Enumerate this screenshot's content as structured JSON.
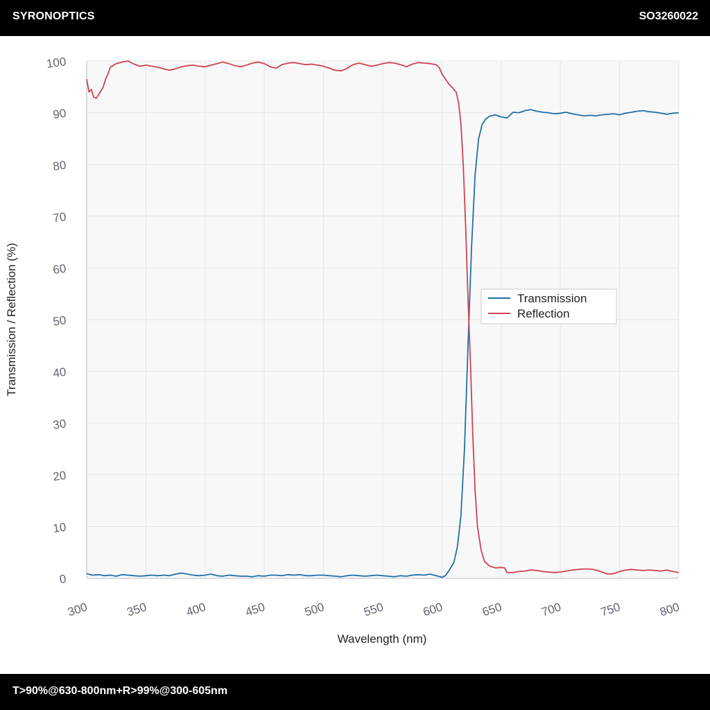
{
  "header": {
    "brand": "SYRONOPTICS",
    "part_number": "SO3260022"
  },
  "footer": {
    "spec": "T>90%@630-800nm+R>99%@300-605nm"
  },
  "colors": {
    "transmission": "#1f6fa8",
    "reflection": "#d0414f",
    "plot_background": "#f8f8f9",
    "grid": "#e4e5e8"
  },
  "chart_data": {
    "type": "line",
    "xlabel": "Wavelength (nm)",
    "ylabel": "Transmission / Reflection (%)",
    "xlim": [
      300,
      800
    ],
    "ylim": [
      0,
      100
    ],
    "xticks": [
      300,
      350,
      400,
      450,
      500,
      550,
      600,
      650,
      700,
      750,
      800
    ],
    "yticks": [
      0,
      10,
      20,
      30,
      40,
      50,
      60,
      70,
      80,
      90,
      100
    ],
    "grid": true,
    "legend_position": "right-center",
    "series": [
      {
        "name": "Transmission",
        "color": "#1f6fa8",
        "points": [
          [
            300,
            0.9
          ],
          [
            305,
            0.6
          ],
          [
            310,
            0.7
          ],
          [
            315,
            0.5
          ],
          [
            320,
            0.6
          ],
          [
            325,
            0.4
          ],
          [
            330,
            0.7
          ],
          [
            335,
            0.6
          ],
          [
            340,
            0.5
          ],
          [
            345,
            0.4
          ],
          [
            350,
            0.5
          ],
          [
            355,
            0.6
          ],
          [
            360,
            0.5
          ],
          [
            365,
            0.6
          ],
          [
            370,
            0.5
          ],
          [
            375,
            0.8
          ],
          [
            380,
            1.0
          ],
          [
            385,
            0.8
          ],
          [
            390,
            0.6
          ],
          [
            395,
            0.5
          ],
          [
            400,
            0.6
          ],
          [
            405,
            0.8
          ],
          [
            410,
            0.5
          ],
          [
            415,
            0.4
          ],
          [
            420,
            0.6
          ],
          [
            425,
            0.5
          ],
          [
            430,
            0.4
          ],
          [
            435,
            0.4
          ],
          [
            440,
            0.3
          ],
          [
            445,
            0.5
          ],
          [
            450,
            0.4
          ],
          [
            455,
            0.6
          ],
          [
            460,
            0.6
          ],
          [
            465,
            0.5
          ],
          [
            470,
            0.7
          ],
          [
            475,
            0.6
          ],
          [
            480,
            0.7
          ],
          [
            485,
            0.5
          ],
          [
            490,
            0.5
          ],
          [
            495,
            0.6
          ],
          [
            500,
            0.6
          ],
          [
            505,
            0.5
          ],
          [
            510,
            0.4
          ],
          [
            515,
            0.3
          ],
          [
            520,
            0.5
          ],
          [
            525,
            0.6
          ],
          [
            530,
            0.5
          ],
          [
            535,
            0.4
          ],
          [
            540,
            0.5
          ],
          [
            545,
            0.6
          ],
          [
            550,
            0.5
          ],
          [
            555,
            0.4
          ],
          [
            560,
            0.3
          ],
          [
            565,
            0.5
          ],
          [
            570,
            0.4
          ],
          [
            575,
            0.6
          ],
          [
            580,
            0.7
          ],
          [
            585,
            0.6
          ],
          [
            590,
            0.8
          ],
          [
            595,
            0.5
          ],
          [
            600,
            0.2
          ],
          [
            603,
            0.5
          ],
          [
            606,
            1.5
          ],
          [
            610,
            3.0
          ],
          [
            613,
            6.0
          ],
          [
            616,
            12.0
          ],
          [
            619,
            25.0
          ],
          [
            622,
            45.0
          ],
          [
            625,
            64.0
          ],
          [
            628,
            78.0
          ],
          [
            631,
            85.0
          ],
          [
            634,
            87.8
          ],
          [
            637,
            88.8
          ],
          [
            640,
            89.3
          ],
          [
            645,
            89.6
          ],
          [
            650,
            89.2
          ],
          [
            655,
            89.0
          ],
          [
            660,
            90.1
          ],
          [
            665,
            90.0
          ],
          [
            670,
            90.4
          ],
          [
            675,
            90.6
          ],
          [
            680,
            90.3
          ],
          [
            685,
            90.1
          ],
          [
            690,
            90.0
          ],
          [
            695,
            89.8
          ],
          [
            700,
            89.9
          ],
          [
            705,
            90.1
          ],
          [
            710,
            89.8
          ],
          [
            715,
            89.6
          ],
          [
            720,
            89.4
          ],
          [
            725,
            89.5
          ],
          [
            730,
            89.4
          ],
          [
            735,
            89.6
          ],
          [
            740,
            89.7
          ],
          [
            745,
            89.8
          ],
          [
            750,
            89.6
          ],
          [
            755,
            89.9
          ],
          [
            760,
            90.1
          ],
          [
            765,
            90.3
          ],
          [
            770,
            90.4
          ],
          [
            775,
            90.2
          ],
          [
            780,
            90.1
          ],
          [
            785,
            89.9
          ],
          [
            790,
            89.7
          ],
          [
            795,
            89.9
          ],
          [
            800,
            90.0
          ]
        ]
      },
      {
        "name": "Reflection",
        "color": "#d0414f",
        "points": [
          [
            300,
            96.5
          ],
          [
            302,
            94.0
          ],
          [
            304,
            94.5
          ],
          [
            306,
            93.0
          ],
          [
            308,
            92.8
          ],
          [
            310,
            93.5
          ],
          [
            312,
            94.2
          ],
          [
            314,
            95.0
          ],
          [
            316,
            96.5
          ],
          [
            318,
            97.5
          ],
          [
            320,
            98.8
          ],
          [
            325,
            99.5
          ],
          [
            330,
            99.8
          ],
          [
            335,
            100.0
          ],
          [
            340,
            99.4
          ],
          [
            345,
            99.0
          ],
          [
            350,
            99.2
          ],
          [
            355,
            99.0
          ],
          [
            360,
            98.8
          ],
          [
            365,
            98.5
          ],
          [
            370,
            98.2
          ],
          [
            375,
            98.5
          ],
          [
            380,
            98.9
          ],
          [
            385,
            99.1
          ],
          [
            390,
            99.2
          ],
          [
            395,
            99.0
          ],
          [
            400,
            98.9
          ],
          [
            405,
            99.2
          ],
          [
            410,
            99.5
          ],
          [
            415,
            99.8
          ],
          [
            420,
            99.5
          ],
          [
            425,
            99.1
          ],
          [
            430,
            98.9
          ],
          [
            435,
            99.2
          ],
          [
            440,
            99.6
          ],
          [
            445,
            99.8
          ],
          [
            450,
            99.5
          ],
          [
            455,
            98.9
          ],
          [
            460,
            98.6
          ],
          [
            465,
            99.3
          ],
          [
            470,
            99.6
          ],
          [
            475,
            99.7
          ],
          [
            480,
            99.5
          ],
          [
            485,
            99.3
          ],
          [
            490,
            99.4
          ],
          [
            495,
            99.2
          ],
          [
            500,
            99.0
          ],
          [
            505,
            98.6
          ],
          [
            510,
            98.2
          ],
          [
            515,
            98.1
          ],
          [
            520,
            98.6
          ],
          [
            525,
            99.3
          ],
          [
            530,
            99.6
          ],
          [
            535,
            99.3
          ],
          [
            540,
            99.0
          ],
          [
            545,
            99.2
          ],
          [
            550,
            99.5
          ],
          [
            555,
            99.7
          ],
          [
            560,
            99.6
          ],
          [
            565,
            99.3
          ],
          [
            570,
            98.9
          ],
          [
            575,
            99.4
          ],
          [
            580,
            99.7
          ],
          [
            585,
            99.6
          ],
          [
            590,
            99.5
          ],
          [
            595,
            99.3
          ],
          [
            598,
            98.6
          ],
          [
            600,
            97.5
          ],
          [
            603,
            96.5
          ],
          [
            606,
            95.5
          ],
          [
            609,
            94.8
          ],
          [
            612,
            94.0
          ],
          [
            614,
            92.0
          ],
          [
            616,
            88.0
          ],
          [
            618,
            80.0
          ],
          [
            620,
            68.0
          ],
          [
            622,
            54.0
          ],
          [
            624,
            42.0
          ],
          [
            626,
            28.0
          ],
          [
            628,
            17.0
          ],
          [
            630,
            10.0
          ],
          [
            633,
            5.5
          ],
          [
            636,
            3.2
          ],
          [
            640,
            2.4
          ],
          [
            645,
            2.0
          ],
          [
            650,
            2.1
          ],
          [
            653,
            2.0
          ],
          [
            655,
            1.1
          ],
          [
            660,
            1.1
          ],
          [
            665,
            1.3
          ],
          [
            670,
            1.4
          ],
          [
            675,
            1.6
          ],
          [
            680,
            1.5
          ],
          [
            685,
            1.3
          ],
          [
            690,
            1.2
          ],
          [
            695,
            1.1
          ],
          [
            700,
            1.2
          ],
          [
            705,
            1.4
          ],
          [
            710,
            1.6
          ],
          [
            715,
            1.7
          ],
          [
            720,
            1.8
          ],
          [
            725,
            1.8
          ],
          [
            730,
            1.6
          ],
          [
            735,
            1.2
          ],
          [
            740,
            0.8
          ],
          [
            745,
            0.9
          ],
          [
            750,
            1.3
          ],
          [
            755,
            1.6
          ],
          [
            760,
            1.7
          ],
          [
            765,
            1.6
          ],
          [
            770,
            1.5
          ],
          [
            775,
            1.6
          ],
          [
            780,
            1.5
          ],
          [
            785,
            1.4
          ],
          [
            790,
            1.6
          ],
          [
            795,
            1.3
          ],
          [
            800,
            1.1
          ]
        ]
      }
    ]
  }
}
